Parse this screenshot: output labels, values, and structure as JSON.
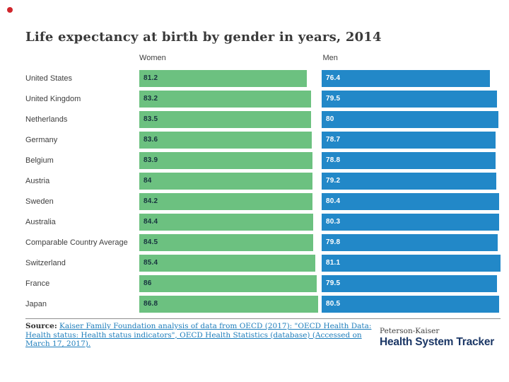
{
  "decorations": {
    "record_dot_color": "#d0262c"
  },
  "chart_data": {
    "type": "bar",
    "orientation": "horizontal",
    "title": "Life expectancy at birth by gender in years, 2014",
    "categories": [
      "United States",
      "United Kingdom",
      "Netherlands",
      "Germany",
      "Belgium",
      "Austria",
      "Sweden",
      "Australia",
      "Comparable Country Average",
      "Switzerland",
      "France",
      "Japan"
    ],
    "series": [
      {
        "name": "Women",
        "color": "#6cc180",
        "value_label_color": "#17323e",
        "values": [
          81.2,
          83.2,
          83.5,
          83.6,
          83.9,
          84,
          84.2,
          84.4,
          84.5,
          85.4,
          86,
          86.8
        ]
      },
      {
        "name": "Men",
        "color": "#2288c8",
        "value_label_color": "#ffffff",
        "values": [
          76.4,
          79.5,
          80,
          78.7,
          78.8,
          79.2,
          80.4,
          80.3,
          79.8,
          81.1,
          79.5,
          80.5
        ]
      }
    ],
    "value_labels": "inside-start",
    "axes_hidden": true,
    "legend_position": "column-headers",
    "bars_scaled_to_column_max": true
  },
  "footer": {
    "source_prefix": "Source:",
    "source_link_text": "Kaiser Family Foundation analysis of data from OECD (2017): \"OECD Health Data: Health status: Health status indicators\", OECD Health Statistics (database) (Accessed on March 17, 2017).",
    "link_color": "#1d7dbb",
    "divider_color": "#8f8f8f"
  },
  "branding": {
    "line1": "Peterson-Kaiser",
    "line2": "Health System Tracker",
    "navy": "#1b3766"
  }
}
